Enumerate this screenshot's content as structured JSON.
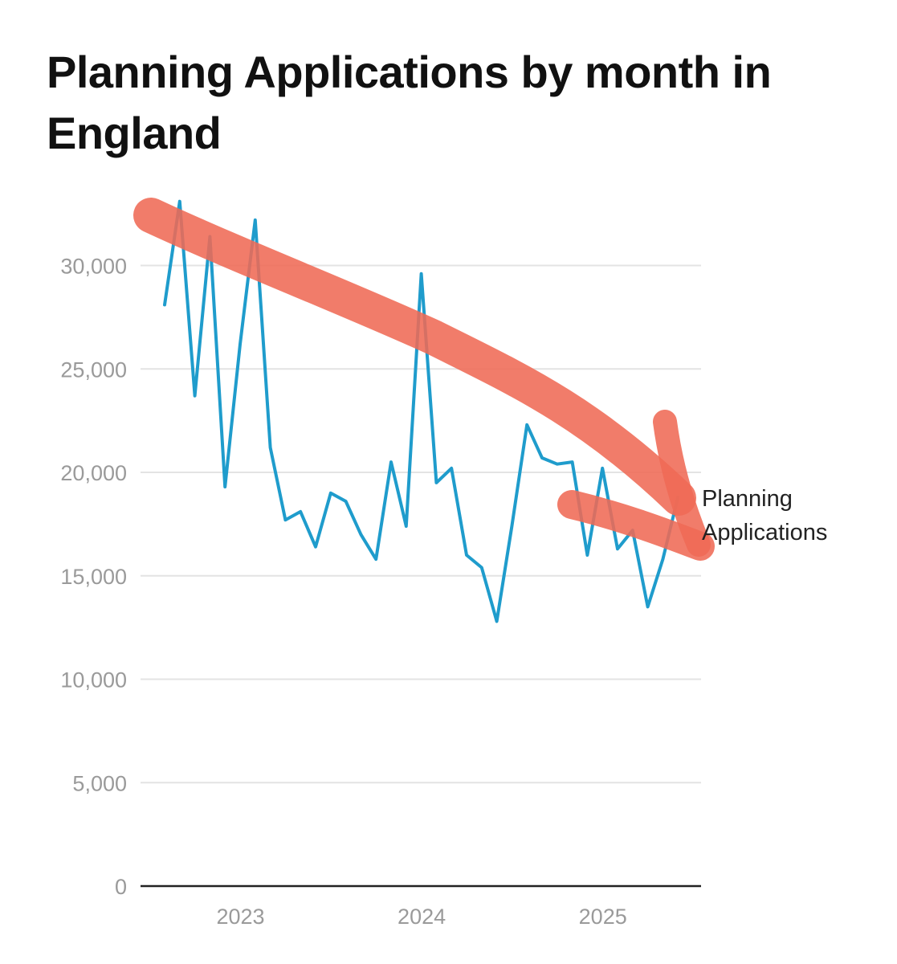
{
  "chart_data": {
    "type": "line",
    "title": "Planning Applications by month in England",
    "xlabel": "",
    "ylabel": "",
    "ylim": [
      0,
      33000
    ],
    "y_ticks": [
      0,
      5000,
      10000,
      15000,
      20000,
      25000,
      30000
    ],
    "y_tick_labels": [
      "0",
      "5,000",
      "10,000",
      "15,000",
      "20,000",
      "25,000",
      "30,000"
    ],
    "x_tick_labels": [
      "2023",
      "2024",
      "2025"
    ],
    "x_tick_positions": [
      5,
      17,
      29
    ],
    "grid": true,
    "series": [
      {
        "name": "Planning Applications",
        "color": "#1f9ccc",
        "values": [
          28100,
          33100,
          23700,
          31400,
          19300,
          26200,
          32200,
          21200,
          17700,
          18100,
          16400,
          19000,
          18600,
          17000,
          15800,
          20500,
          17400,
          29600,
          19500,
          20200,
          16000,
          15400,
          12800,
          17400,
          22300,
          20700,
          20400,
          20500,
          16000,
          20200,
          16300,
          17200,
          13500,
          15800,
          18800
        ]
      }
    ],
    "annotation": {
      "type": "hand-drawn downward trend arrow",
      "color": "#ef6a55"
    }
  }
}
